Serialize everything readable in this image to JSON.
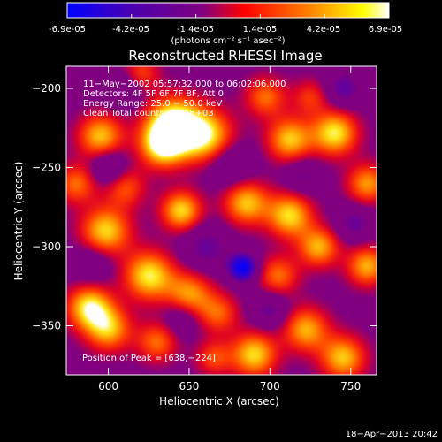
{
  "colorbar": {
    "ticks": [
      "-6.9e-05",
      "-4.2e-05",
      "-1.4e-05",
      "1.4e-05",
      "4.2e-05",
      "6.9e-05"
    ],
    "units_label": "(photons cm⁻² s⁻¹ asec⁻²)",
    "colors": [
      "#0000ff",
      "#4b00b0",
      "#800080",
      "#ff0000",
      "#ff8000",
      "#ffff00",
      "#ffffff"
    ]
  },
  "chart_data": {
    "type": "heatmap",
    "title": "Reconstructed RHESSI Image",
    "xlabel": "Heliocentric X (arcsec)",
    "ylabel": "Heliocentric Y (arcsec)",
    "xlim": [
      574,
      766
    ],
    "ylim": [
      -381,
      -186
    ],
    "xticks": [
      600,
      650,
      700,
      750
    ],
    "yticks": [
      -200,
      -250,
      -300,
      -350
    ],
    "xtick_labels": [
      "600",
      "650",
      "700",
      "750"
    ],
    "ytick_labels": [
      "−200",
      "−250",
      "−300",
      "−350"
    ],
    "value_range": [
      -6.9e-05,
      6.9e-05
    ],
    "annotations": [
      "11−May−2002 05:57:32.000 to 06:02:06.000",
      "Detectors: 4F 5F 6F 7F 8F, Att 0",
      "Energy Range: 25.0 − 50.0 keV",
      "Clean     Total counts: 2.46E+03"
    ],
    "peak_label": "Position of Peak = [638,−224]",
    "peak": [
      638,
      -224
    ],
    "blobs": [
      {
        "x": 640,
        "y": -222,
        "v": 1.0,
        "s": 12
      },
      {
        "x": 660,
        "y": -230,
        "v": 0.85,
        "s": 12
      },
      {
        "x": 633,
        "y": -236,
        "v": 0.8,
        "s": 10
      },
      {
        "x": 595,
        "y": -230,
        "v": 0.75,
        "s": 10
      },
      {
        "x": 580,
        "y": -260,
        "v": 0.55,
        "s": 9
      },
      {
        "x": 610,
        "y": -262,
        "v": 0.5,
        "s": 9
      },
      {
        "x": 598,
        "y": -290,
        "v": 0.8,
        "s": 11
      },
      {
        "x": 625,
        "y": -318,
        "v": 0.85,
        "s": 11
      },
      {
        "x": 650,
        "y": -330,
        "v": 0.65,
        "s": 10
      },
      {
        "x": 588,
        "y": -338,
        "v": 0.85,
        "s": 10
      },
      {
        "x": 600,
        "y": -352,
        "v": 0.7,
        "s": 10
      },
      {
        "x": 630,
        "y": -360,
        "v": 0.55,
        "s": 9
      },
      {
        "x": 668,
        "y": -342,
        "v": 0.5,
        "s": 9
      },
      {
        "x": 645,
        "y": -277,
        "v": 0.8,
        "s": 9
      },
      {
        "x": 685,
        "y": -272,
        "v": 0.75,
        "s": 10
      },
      {
        "x": 697,
        "y": -205,
        "v": 0.55,
        "s": 9
      },
      {
        "x": 712,
        "y": -232,
        "v": 0.75,
        "s": 10
      },
      {
        "x": 740,
        "y": -228,
        "v": 0.85,
        "s": 10
      },
      {
        "x": 760,
        "y": -260,
        "v": 0.65,
        "s": 9
      },
      {
        "x": 712,
        "y": -280,
        "v": 0.8,
        "s": 10
      },
      {
        "x": 730,
        "y": -300,
        "v": 0.7,
        "s": 9
      },
      {
        "x": 705,
        "y": -318,
        "v": 0.55,
        "s": 9
      },
      {
        "x": 760,
        "y": -312,
        "v": 0.7,
        "s": 9
      },
      {
        "x": 722,
        "y": -352,
        "v": 0.7,
        "s": 10
      },
      {
        "x": 690,
        "y": -368,
        "v": 0.8,
        "s": 10
      },
      {
        "x": 745,
        "y": -370,
        "v": 0.75,
        "s": 10
      },
      {
        "x": 665,
        "y": -370,
        "v": 0.45,
        "s": 8
      },
      {
        "x": 725,
        "y": -205,
        "v": 0.4,
        "s": 8
      },
      {
        "x": 620,
        "y": -190,
        "v": 0.45,
        "s": 8
      },
      {
        "x": 683,
        "y": -313,
        "v": -1.0,
        "s": 6
      },
      {
        "x": 660,
        "y": -300,
        "v": -0.35,
        "s": 10
      },
      {
        "x": 675,
        "y": -248,
        "v": -0.35,
        "s": 10
      },
      {
        "x": 590,
        "y": -310,
        "v": -0.3,
        "s": 9
      },
      {
        "x": 600,
        "y": -250,
        "v": -0.45,
        "s": 8
      },
      {
        "x": 745,
        "y": -200,
        "v": -0.4,
        "s": 8
      },
      {
        "x": 752,
        "y": -285,
        "v": -0.35,
        "s": 8
      },
      {
        "x": 610,
        "y": -200,
        "v": -0.3,
        "s": 8
      },
      {
        "x": 720,
        "y": -255,
        "v": -0.3,
        "s": 8
      },
      {
        "x": 700,
        "y": -340,
        "v": -0.35,
        "s": 8
      },
      {
        "x": 645,
        "y": -345,
        "v": -0.3,
        "s": 8
      }
    ]
  },
  "footer": {
    "timestamp": "18−Apr−2013 20:42"
  }
}
